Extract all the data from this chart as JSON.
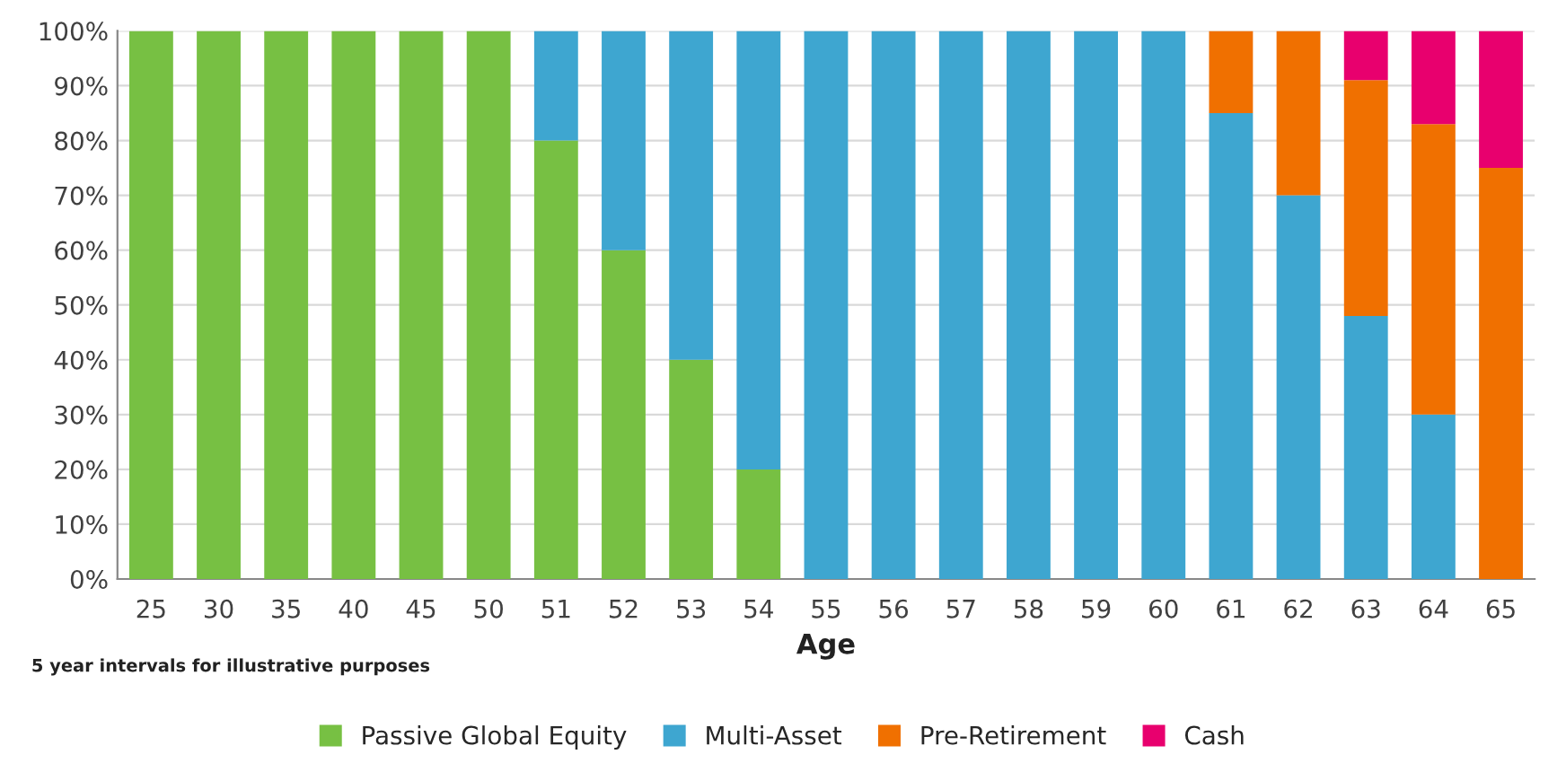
{
  "chart_data": {
    "type": "bar",
    "stacked": true,
    "xlabel": "Age",
    "annotations": [
      "5 year intervals for illustrative purposes"
    ],
    "categories": [
      "25",
      "30",
      "35",
      "40",
      "45",
      "50",
      "51",
      "52",
      "53",
      "54",
      "55",
      "56",
      "57",
      "58",
      "59",
      "60",
      "61",
      "62",
      "63",
      "64",
      "65"
    ],
    "series": [
      {
        "name": "Passive Global Equity",
        "color": "#77c043",
        "values": [
          100,
          100,
          100,
          100,
          100,
          100,
          80,
          60,
          40,
          20,
          0,
          0,
          0,
          0,
          0,
          0,
          0,
          0,
          0,
          0,
          0
        ]
      },
      {
        "name": "Multi-Asset",
        "color": "#3ea6d0",
        "values": [
          0,
          0,
          0,
          0,
          0,
          0,
          20,
          40,
          60,
          80,
          100,
          100,
          100,
          100,
          100,
          100,
          85,
          70,
          48,
          30,
          0
        ]
      },
      {
        "name": "Pre-Retirement",
        "color": "#f07000",
        "values": [
          0,
          0,
          0,
          0,
          0,
          0,
          0,
          0,
          0,
          0,
          0,
          0,
          0,
          0,
          0,
          0,
          15,
          30,
          43,
          53,
          75
        ]
      },
      {
        "name": "Cash",
        "color": "#e8006e",
        "values": [
          0,
          0,
          0,
          0,
          0,
          0,
          0,
          0,
          0,
          0,
          0,
          0,
          0,
          0,
          0,
          0,
          0,
          0,
          9,
          17,
          25
        ]
      }
    ],
    "ylim": [
      0,
      100
    ],
    "yticks": [
      {
        "value": 0,
        "label": "0%"
      },
      {
        "value": 10,
        "label": "10%"
      },
      {
        "value": 20,
        "label": "20%"
      },
      {
        "value": 30,
        "label": "30%"
      },
      {
        "value": 40,
        "label": "40%"
      },
      {
        "value": 50,
        "label": "50%"
      },
      {
        "value": 60,
        "label": "60%"
      },
      {
        "value": 70,
        "label": "70%"
      },
      {
        "value": 80,
        "label": "80%"
      },
      {
        "value": 90,
        "label": "90%"
      },
      {
        "value": 100,
        "label": "100%"
      }
    ],
    "grid": "y",
    "legend": "bottom"
  }
}
